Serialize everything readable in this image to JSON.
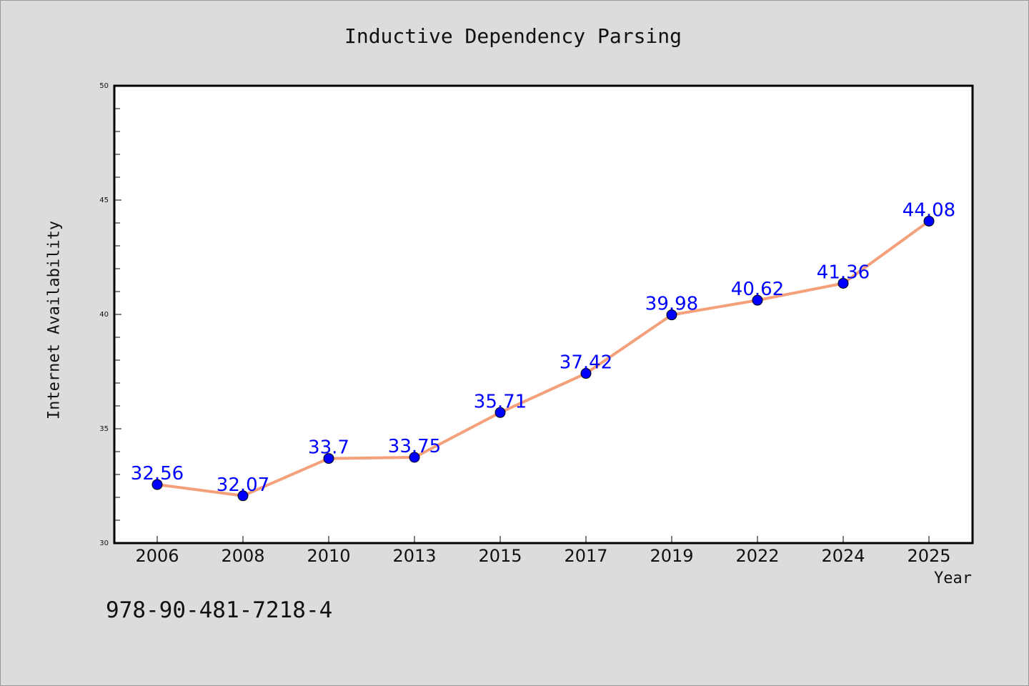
{
  "chart_data": {
    "type": "line",
    "title": "Inductive Dependency Parsing",
    "xlabel": "Year",
    "ylabel": "Internet Availability",
    "categories": [
      "2006",
      "2008",
      "2010",
      "2013",
      "2015",
      "2017",
      "2019",
      "2022",
      "2024",
      "2025"
    ],
    "series": [
      {
        "values": [
          32.56,
          32.07,
          33.7,
          33.75,
          35.71,
          37.42,
          39.98,
          40.62,
          41.36,
          44.08
        ],
        "labels": [
          "32.56",
          "32.07",
          "33.7",
          "33.75",
          "35.71",
          "37.42",
          "39.98",
          "40.62",
          "41.36",
          "44.08"
        ],
        "line_color": "#f4a07a",
        "marker_color": "#0000ff"
      }
    ],
    "ylim": [
      30,
      50
    ],
    "yticks": [
      "30",
      "35",
      "40",
      "45",
      "50"
    ],
    "grid": false,
    "legend": "none"
  },
  "annotation": "978-90-481-7218-4",
  "colors": {
    "background": "#dcdcdc",
    "plot_background": "#ffffff",
    "data_label": "#0000ff"
  }
}
